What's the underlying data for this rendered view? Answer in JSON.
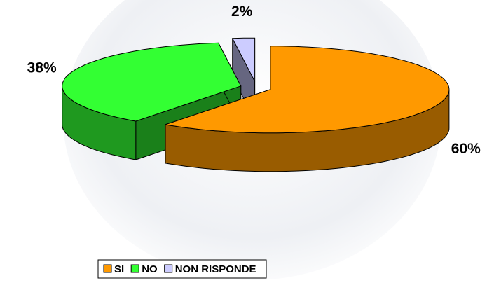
{
  "chart_data": {
    "type": "pie3d",
    "categories": [
      "SI",
      "NO",
      "NON RISPONDE"
    ],
    "values": [
      60,
      38,
      2
    ],
    "value_labels": [
      "60%",
      "38%",
      "2%"
    ],
    "colors": [
      "#ff9900",
      "#33ff33",
      "#ccccff"
    ],
    "legend": "bottom"
  }
}
